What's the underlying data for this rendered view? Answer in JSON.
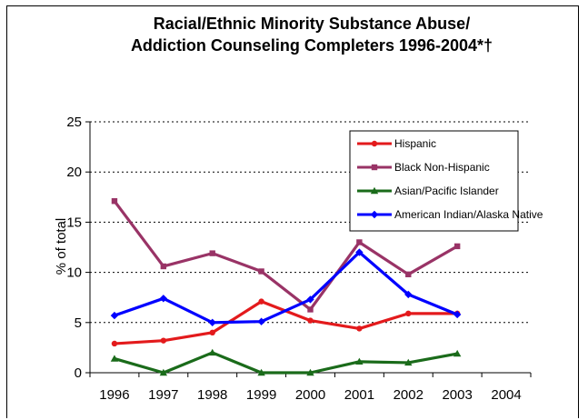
{
  "chart_data": {
    "type": "line",
    "title_lines": [
      "Racial/Ethnic Minority Substance Abuse/",
      "Addiction Counseling Completers 1996-2004*†"
    ],
    "ylabel": "% of total",
    "xlabel": "",
    "categories": [
      "1996",
      "1997",
      "1998",
      "1999",
      "2000",
      "2001",
      "2002",
      "2003",
      "2004"
    ],
    "ylim": [
      0,
      25
    ],
    "yticks": [
      "0",
      "5",
      "10",
      "15",
      "20",
      "25"
    ],
    "grid": "horizontal dotted",
    "legend_position": "top-right",
    "series": [
      {
        "name": "Hispanic",
        "color": "#e31a1c",
        "marker": "circle",
        "values": [
          2.9,
          3.2,
          4.0,
          7.1,
          5.2,
          4.4,
          5.9,
          5.9,
          null
        ]
      },
      {
        "name": "Black Non-Hispanic",
        "color": "#993366",
        "marker": "square",
        "values": [
          17.1,
          10.6,
          11.9,
          10.1,
          6.3,
          13.0,
          9.8,
          12.6,
          null
        ]
      },
      {
        "name": "Asian/Pacific Islander",
        "color": "#1a6b1a",
        "marker": "triangle",
        "values": [
          1.4,
          0.0,
          2.0,
          0.0,
          0.0,
          1.1,
          1.0,
          1.9,
          null
        ]
      },
      {
        "name": "American Indian/Alaska Native",
        "color": "#0000ff",
        "marker": "diamond",
        "values": [
          5.7,
          7.4,
          5.0,
          5.1,
          7.3,
          12.0,
          7.8,
          5.8,
          null
        ]
      }
    ]
  }
}
